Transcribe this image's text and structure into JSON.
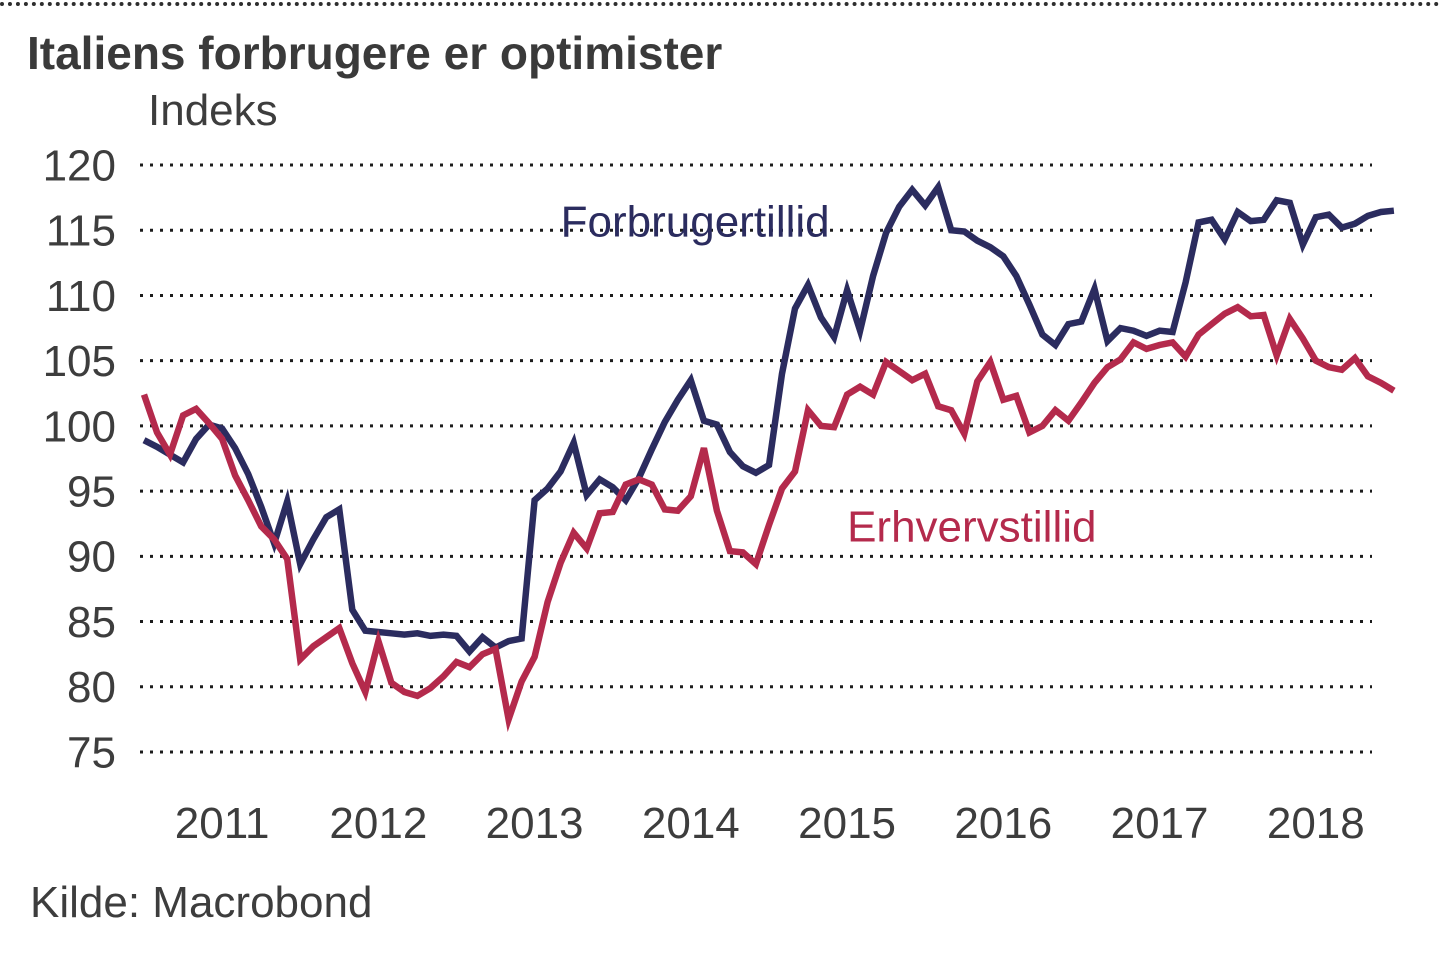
{
  "header": {
    "title": "Italiens forbrugere er optimister"
  },
  "footer": {
    "source": "Kilde: Macrobond"
  },
  "chart_data": {
    "type": "line",
    "title": "Italiens forbrugere er optimister",
    "unit_label": "Indeks",
    "source": "Kilde: Macrobond",
    "x_start": "2010-07",
    "frequency": "monthly",
    "x_axis": {
      "tick_labels": [
        "2011",
        "2012",
        "2013",
        "2014",
        "2015",
        "2016",
        "2017",
        "2018"
      ]
    },
    "y_axis": {
      "min": 75,
      "max": 120,
      "step": 5,
      "ticks": [
        120,
        115,
        110,
        105,
        100,
        95,
        90,
        85,
        80,
        75
      ],
      "gridlines": "dotted"
    },
    "legend_position": "inline-annotations",
    "series": [
      {
        "name": "Forbrugertillid",
        "color": "#2b2c5f",
        "values": [
          98.9,
          98.4,
          97.8,
          97.2,
          99.0,
          100.1,
          99.8,
          98.3,
          96.3,
          93.8,
          91.0,
          94.2,
          89.4,
          91.3,
          93.0,
          93.6,
          85.9,
          84.3,
          84.2,
          84.1,
          84.0,
          84.1,
          83.9,
          84.0,
          83.9,
          82.7,
          83.8,
          83.0,
          83.5,
          83.7,
          94.3,
          95.2,
          96.5,
          98.7,
          94.7,
          95.9,
          95.3,
          94.3,
          96.0,
          98.2,
          100.3,
          102.0,
          103.5,
          100.4,
          100.1,
          98.0,
          96.9,
          96.4,
          97.0,
          104.0,
          109.0,
          110.8,
          108.3,
          106.8,
          110.4,
          107.3,
          111.5,
          114.8,
          116.8,
          118.1,
          116.9,
          118.3,
          115.0,
          114.9,
          114.2,
          113.7,
          113.0,
          111.5,
          109.3,
          107.0,
          106.2,
          107.8,
          108.0,
          110.5,
          106.5,
          107.5,
          107.3,
          106.9,
          107.3,
          107.2,
          111.0,
          115.6,
          115.8,
          114.3,
          116.4,
          115.7,
          115.8,
          117.3,
          117.1,
          113.9,
          116.0,
          116.2,
          115.2,
          115.5,
          116.1,
          116.4,
          116.5
        ]
      },
      {
        "name": "Erhvervstillid",
        "color": "#b42a4c",
        "values": [
          102.4,
          99.5,
          97.8,
          100.8,
          101.3,
          100.2,
          99.0,
          96.2,
          94.3,
          92.3,
          91.3,
          89.8,
          82.1,
          83.1,
          83.8,
          84.5,
          81.8,
          79.6,
          83.5,
          80.3,
          79.6,
          79.3,
          79.9,
          80.8,
          81.9,
          81.5,
          82.5,
          82.9,
          77.5,
          80.4,
          82.3,
          86.5,
          89.5,
          91.8,
          90.6,
          93.3,
          93.4,
          95.5,
          95.9,
          95.5,
          93.6,
          93.5,
          94.6,
          98.3,
          93.5,
          90.4,
          90.3,
          89.4,
          92.4,
          95.2,
          96.5,
          101.2,
          100.0,
          99.9,
          102.4,
          103.0,
          102.4,
          104.9,
          104.2,
          103.5,
          104.0,
          101.5,
          101.2,
          99.4,
          103.4,
          104.9,
          102.0,
          102.3,
          99.5,
          100.0,
          101.2,
          100.4,
          101.8,
          103.3,
          104.5,
          105.1,
          106.4,
          105.9,
          106.2,
          106.4,
          105.3,
          107.0,
          107.8,
          108.6,
          109.1,
          108.4,
          108.5,
          105.4,
          108.2,
          106.7,
          105.0,
          104.5,
          104.3,
          105.2,
          103.8,
          103.3,
          102.7
        ]
      }
    ],
    "annotations": [
      {
        "label": "Forbrugertillid",
        "month_index": 32,
        "value": 115.7,
        "color": "#2b2c5f"
      },
      {
        "label": "Erhvervstillid",
        "month_index": 54,
        "value": 92.3,
        "color": "#b42a4c"
      }
    ]
  }
}
